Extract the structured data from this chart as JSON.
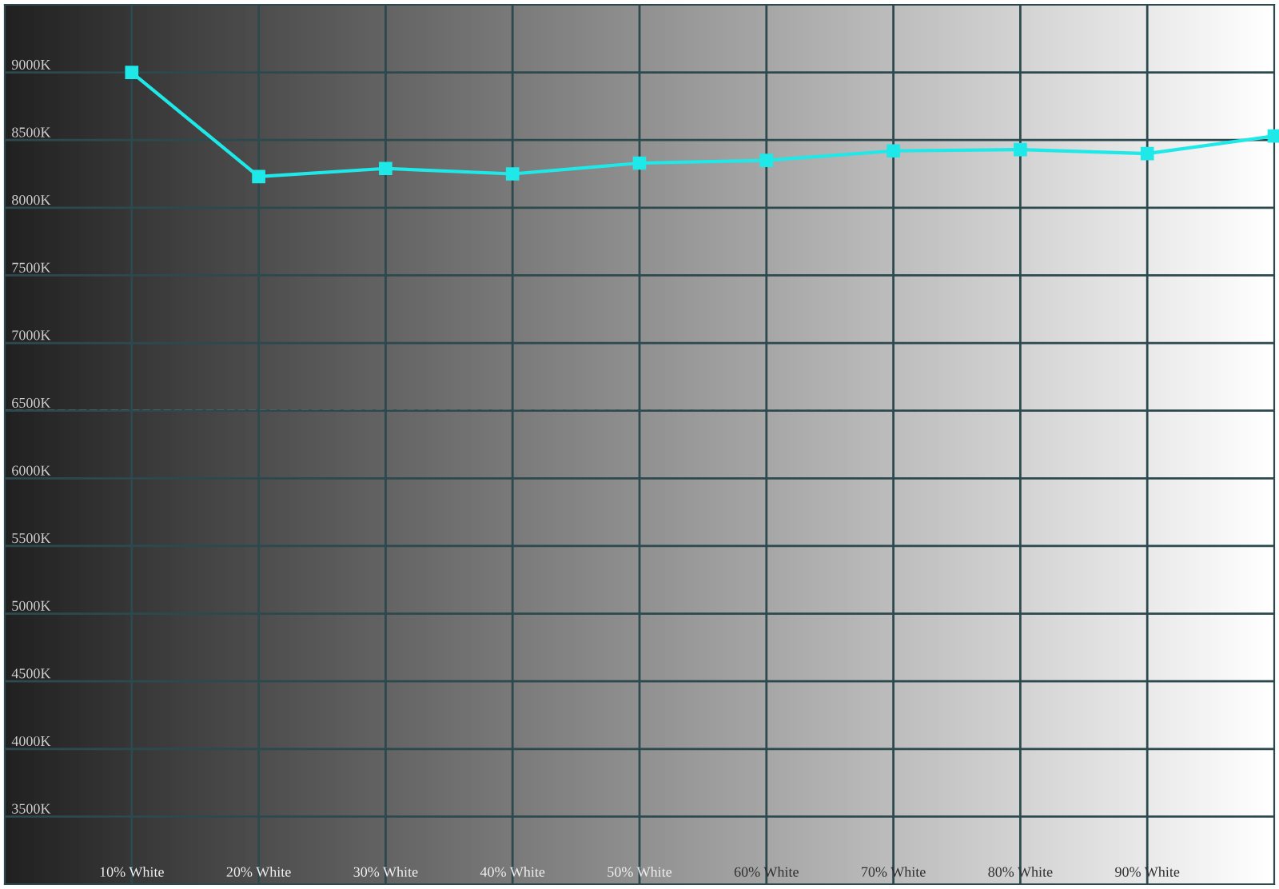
{
  "chart_data": {
    "type": "line",
    "x": [
      10,
      20,
      30,
      40,
      50,
      60,
      70,
      80,
      90,
      100
    ],
    "series": [
      {
        "color": "#1fe8e8",
        "values": [
          9000,
          8230,
          8290,
          8250,
          8330,
          8350,
          8420,
          8430,
          8400,
          8530
        ]
      }
    ],
    "xlim": [
      0,
      100
    ],
    "xticks": [
      {
        "value": 10,
        "label": "10% White"
      },
      {
        "value": 20,
        "label": "20% White"
      },
      {
        "value": 30,
        "label": "30% White"
      },
      {
        "value": 40,
        "label": "40% White"
      },
      {
        "value": 50,
        "label": "50% White"
      },
      {
        "value": 60,
        "label": "60% White"
      },
      {
        "value": 70,
        "label": "70% White"
      },
      {
        "value": 80,
        "label": "80% White"
      },
      {
        "value": 90,
        "label": "90% White"
      }
    ],
    "ylim": [
      3000,
      9500
    ],
    "yticks": [
      {
        "value": 3500,
        "label": "3500K"
      },
      {
        "value": 4000,
        "label": "4000K"
      },
      {
        "value": 4500,
        "label": "4500K"
      },
      {
        "value": 5000,
        "label": "5000K"
      },
      {
        "value": 5500,
        "label": "5500K"
      },
      {
        "value": 6000,
        "label": "6000K"
      },
      {
        "value": 6500,
        "label": "6500K"
      },
      {
        "value": 7000,
        "label": "7000K"
      },
      {
        "value": 7500,
        "label": "7500K"
      },
      {
        "value": 8000,
        "label": "8000K"
      },
      {
        "value": 8500,
        "label": "8500K"
      },
      {
        "value": 9000,
        "label": "9000K"
      }
    ],
    "ref_lines": [
      {
        "axis": "y",
        "value": 6500,
        "color": "#e8e8e8",
        "line_style": "dashed"
      }
    ],
    "grid": true,
    "marker": "square",
    "line_style": "solid"
  }
}
